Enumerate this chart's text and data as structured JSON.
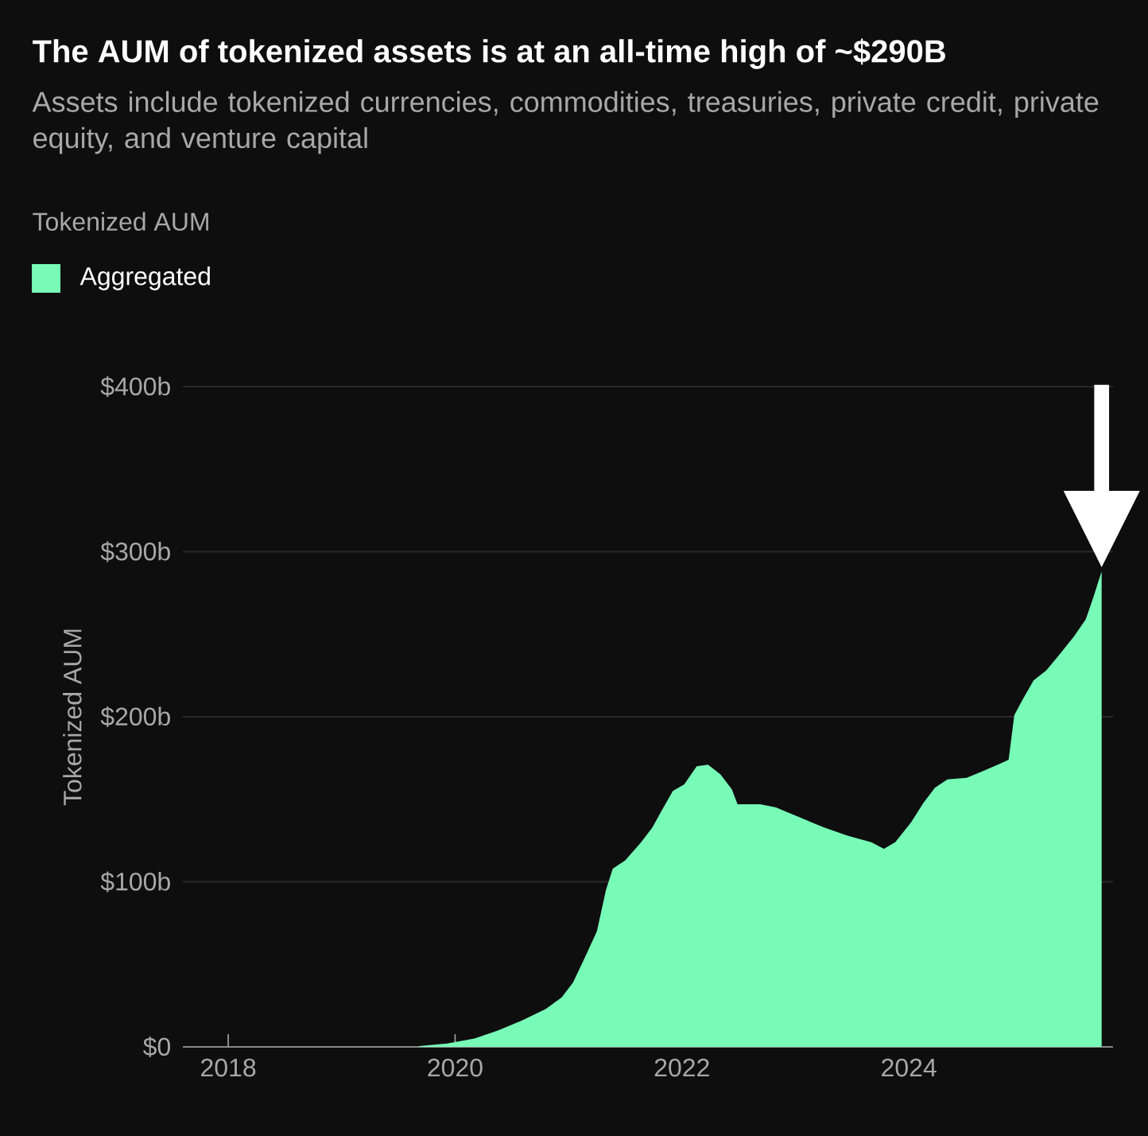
{
  "chart_data": {
    "type": "area",
    "title": "The AUM of tokenized assets is at an all-time high of ~$290B",
    "subtitle": "Assets include tokenized currencies, commodities, treasuries, private credit, private equity, and venture capital",
    "ylabel": "Tokenized AUM",
    "legend_title": "Tokenized AUM",
    "legend": "top left",
    "grid": "y",
    "xlim": [
      2017.6,
      2025.8
    ],
    "xticks": [
      2018,
      2020,
      2022,
      2024
    ],
    "ylim": [
      0,
      400
    ],
    "yticks": [
      {
        "value": 0,
        "label": "$0"
      },
      {
        "value": 100,
        "label": "$100b"
      },
      {
        "value": 200,
        "label": "$200b"
      },
      {
        "value": 300,
        "label": "$300b"
      },
      {
        "value": 400,
        "label": "$400b"
      }
    ],
    "series": [
      {
        "name": "Aggregated",
        "color": "#78fbb7",
        "x": [
          2019.68,
          2019.93,
          2020.17,
          2020.38,
          2020.59,
          2020.8,
          2020.94,
          2021.04,
          2021.15,
          2021.25,
          2021.33,
          2021.39,
          2021.5,
          2021.64,
          2021.74,
          2021.82,
          2021.92,
          2022.02,
          2022.13,
          2022.23,
          2022.34,
          2022.44,
          2022.49,
          2022.69,
          2022.83,
          2023.04,
          2023.25,
          2023.46,
          2023.67,
          2023.78,
          2023.88,
          2024.02,
          2024.13,
          2024.23,
          2024.34,
          2024.51,
          2024.65,
          2024.82,
          2024.88,
          2024.93,
          2025.0,
          2025.1,
          2025.21,
          2025.32,
          2025.46,
          2025.56,
          2025.63,
          2025.69,
          2025.7
        ],
        "values": [
          0.5,
          2,
          5,
          10,
          16,
          23,
          30,
          39,
          55,
          70,
          95,
          108,
          113,
          124,
          133,
          143,
          155,
          159,
          170,
          171,
          165,
          156,
          147,
          147,
          145,
          139,
          133,
          128,
          124,
          120,
          124,
          136,
          148,
          157,
          162,
          163,
          167,
          172,
          174,
          201,
          210,
          222,
          228,
          237,
          249,
          259,
          273,
          286,
          288
        ]
      }
    ]
  }
}
